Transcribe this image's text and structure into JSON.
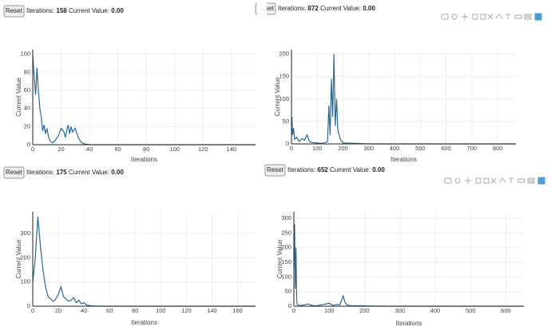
{
  "panels": [
    {
      "button": "Reset",
      "iterations_label": "Iterations:",
      "iterations": 158,
      "value_label": "Current Value:",
      "value": "0.00"
    },
    {
      "button": "Reset",
      "iterations_label": "Iterations:",
      "iterations": 872,
      "value_label": "Current Value:",
      "value": "0.00"
    },
    {
      "button": "Reset",
      "iterations_label": "Iterations:",
      "iterations": 175,
      "value_label": "Current Value:",
      "value": "0.00"
    },
    {
      "button": "Reset",
      "iterations_label": "Iterations:",
      "iterations": 652,
      "value_label": "Current Value:",
      "value": "0.00"
    }
  ],
  "chart_data": [
    {
      "type": "line",
      "x_label": "Iterations",
      "y_label": "Current Value",
      "grid": true,
      "xlim": [
        0,
        157
      ],
      "ylim": [
        0,
        105
      ],
      "xticks": [
        0,
        20,
        40,
        60,
        80,
        100,
        120,
        140
      ],
      "yticks": [
        0,
        20,
        40,
        60,
        80,
        100
      ],
      "x": [
        0,
        1,
        2,
        3,
        4,
        5,
        6,
        7,
        8,
        9,
        10,
        11,
        12,
        13,
        14,
        16,
        18,
        20,
        22,
        23,
        24,
        25,
        26,
        27,
        28,
        30,
        32,
        34,
        36,
        40,
        60,
        100,
        157
      ],
      "series": [
        {
          "color": "#2a6a94",
          "values": [
            100,
            75,
            55,
            85,
            60,
            40,
            30,
            15,
            22,
            12,
            18,
            10,
            5,
            3,
            2,
            5,
            10,
            18,
            14,
            8,
            16,
            22,
            12,
            20,
            14,
            18,
            8,
            3,
            1,
            0,
            0,
            0,
            0
          ]
        }
      ]
    },
    {
      "type": "line",
      "x_label": "Iterations",
      "y_label": "Current Value",
      "grid": true,
      "xlim": [
        0,
        871
      ],
      "ylim": [
        0,
        210
      ],
      "xticks": [
        0,
        100,
        200,
        300,
        400,
        500,
        600,
        700,
        800
      ],
      "yticks": [
        0,
        50,
        100,
        150,
        200
      ],
      "x": [
        0,
        2,
        4,
        8,
        12,
        20,
        30,
        40,
        50,
        60,
        70,
        80,
        100,
        120,
        140,
        145,
        150,
        155,
        160,
        165,
        170,
        175,
        180,
        185,
        190,
        200,
        250,
        300,
        871
      ],
      "series": [
        {
          "color": "#2a6a94",
          "values": [
            50,
            60,
            20,
            35,
            10,
            15,
            5,
            12,
            8,
            20,
            5,
            3,
            2,
            1,
            5,
            85,
            20,
            145,
            60,
            200,
            40,
            100,
            30,
            20,
            10,
            2,
            1,
            0,
            0
          ]
        }
      ]
    },
    {
      "type": "line",
      "x_label": "Iterations",
      "y_label": "Current Value",
      "grid": true,
      "xlim": [
        0,
        174
      ],
      "ylim": [
        0,
        390
      ],
      "xticks": [
        0,
        20,
        40,
        60,
        80,
        100,
        120,
        140,
        160
      ],
      "yticks": [
        0,
        100,
        200,
        300
      ],
      "x": [
        0,
        2,
        4,
        6,
        8,
        10,
        12,
        14,
        16,
        18,
        20,
        22,
        24,
        26,
        28,
        30,
        32,
        34,
        36,
        38,
        40,
        42,
        45,
        50,
        174
      ],
      "series": [
        {
          "color": "#2a6a94",
          "values": [
            100,
            200,
            370,
            250,
            150,
            80,
            40,
            30,
            20,
            30,
            50,
            80,
            40,
            30,
            20,
            25,
            35,
            15,
            25,
            10,
            15,
            5,
            2,
            0,
            0
          ]
        }
      ]
    },
    {
      "type": "line",
      "x_label": "Iterations",
      "y_label": "Current Value",
      "grid": true,
      "xlim": [
        0,
        651
      ],
      "ylim": [
        0,
        322
      ],
      "xticks": [
        0,
        100,
        200,
        300,
        400,
        500,
        600
      ],
      "yticks": [
        0,
        50,
        100,
        150,
        200,
        250,
        300
      ],
      "x": [
        0,
        2,
        4,
        6,
        8,
        10,
        20,
        40,
        50,
        60,
        80,
        100,
        110,
        120,
        130,
        140,
        145,
        150,
        160,
        200,
        250,
        651
      ],
      "series": [
        {
          "color": "#2a6a94",
          "values": [
            130,
            280,
            60,
            200,
            20,
            5,
            2,
            8,
            3,
            1,
            5,
            10,
            3,
            6,
            5,
            35,
            12,
            5,
            2,
            1,
            0,
            0
          ]
        }
      ]
    }
  ]
}
